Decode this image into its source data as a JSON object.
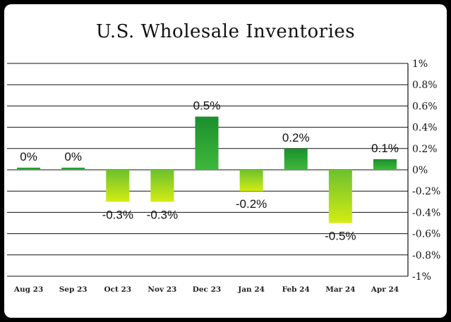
{
  "chart_data": {
    "type": "bar",
    "title": "U.S. Wholesale Inventories",
    "xlabel": "",
    "ylabel": "",
    "categories": [
      "Aug 23",
      "Sep 23",
      "Oct 23",
      "Nov 23",
      "Dec 23",
      "Jan 24",
      "Feb 24",
      "Mar 24",
      "Apr 24"
    ],
    "values": [
      0.02,
      0.02,
      -0.3,
      -0.3,
      0.5,
      -0.2,
      0.2,
      -0.5,
      0.1
    ],
    "data_labels": [
      "0%",
      "0%",
      "-0.3%",
      "-0.3%",
      "0.5%",
      "-0.2%",
      "0.2%",
      "-0.5%",
      "0.1%"
    ],
    "ylim": [
      -1,
      1
    ],
    "yticks": [
      1,
      0.8,
      0.6,
      0.4,
      0.2,
      0,
      -0.2,
      -0.4,
      -0.6,
      -0.8,
      -1
    ],
    "ytick_labels": [
      "1%",
      "0.8%",
      "0.6%",
      "0.4%",
      "0.2%",
      "0%",
      "-0.2%",
      "-0.4%",
      "-0.6%",
      "-0.8%",
      "-1%"
    ],
    "grid": true,
    "y_axis_side": "right",
    "colors": {
      "positive_top": "#1a8f2e",
      "positive_bottom": "#3fb83a",
      "negative_top": "#6cc12e",
      "negative_bottom": "#d4ec12"
    }
  }
}
